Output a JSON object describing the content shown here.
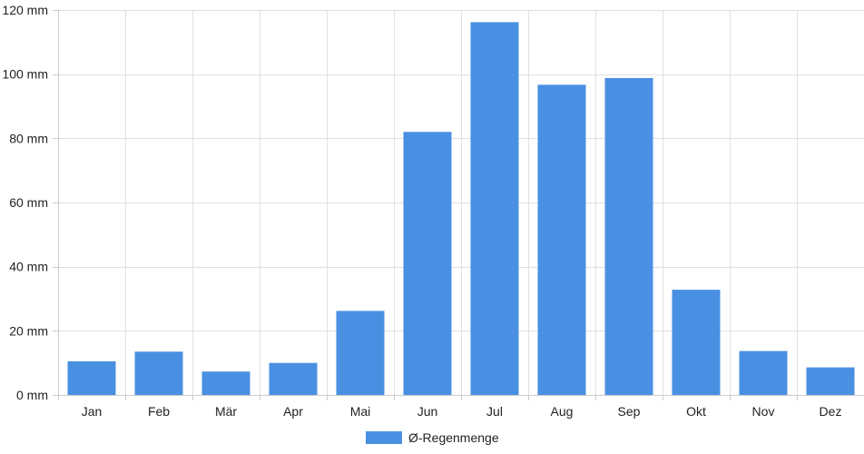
{
  "chart_data": {
    "type": "bar",
    "categories": [
      "Jan",
      "Feb",
      "Mär",
      "Apr",
      "Mai",
      "Jun",
      "Jul",
      "Aug",
      "Sep",
      "Okt",
      "Nov",
      "Dez"
    ],
    "series": [
      {
        "name": "Ø-Regenmenge",
        "values": [
          10.5,
          13.5,
          7.3,
          10.0,
          26.2,
          82.0,
          116.2,
          96.7,
          98.8,
          32.8,
          13.7,
          8.6
        ]
      }
    ],
    "ylim": [
      0,
      120
    ],
    "yticks": [
      0,
      20,
      40,
      60,
      80,
      100,
      120
    ],
    "ytick_labels": [
      "0 mm",
      "20 mm",
      "40 mm",
      "60 mm",
      "80 mm",
      "100 mm",
      "120 mm"
    ],
    "grid": true,
    "legend_position": "bottom",
    "colors": {
      "bar": "#4a90e2",
      "grid": "#e0e0e0",
      "axis": "#cccccc"
    }
  }
}
